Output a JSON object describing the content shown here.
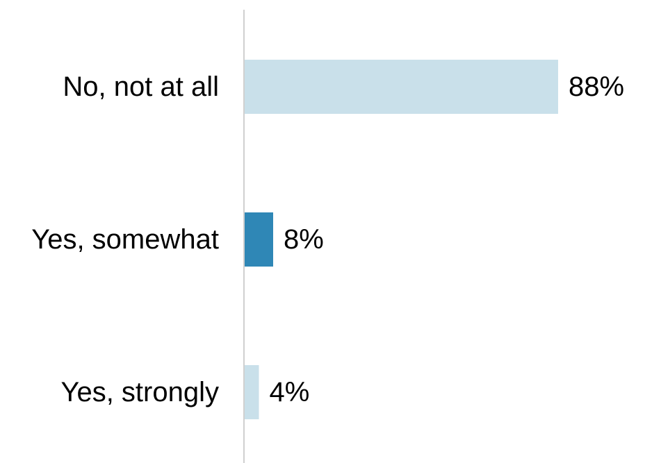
{
  "chart_data": {
    "type": "bar",
    "orientation": "horizontal",
    "title": "",
    "xlabel": "",
    "ylabel": "",
    "categories": [
      "No, not at all",
      "Yes, somewhat",
      "Yes, strongly"
    ],
    "values": [
      88,
      8,
      4
    ],
    "value_labels": [
      "88%",
      "8%",
      "4%"
    ],
    "unit": "%",
    "xlim": [
      0,
      100
    ],
    "grid": false,
    "legend": "none",
    "bar_colors": [
      "#c9e0ea",
      "#2f87b6",
      "#c9e0ea"
    ],
    "axis_color": "#d0d0d0"
  }
}
